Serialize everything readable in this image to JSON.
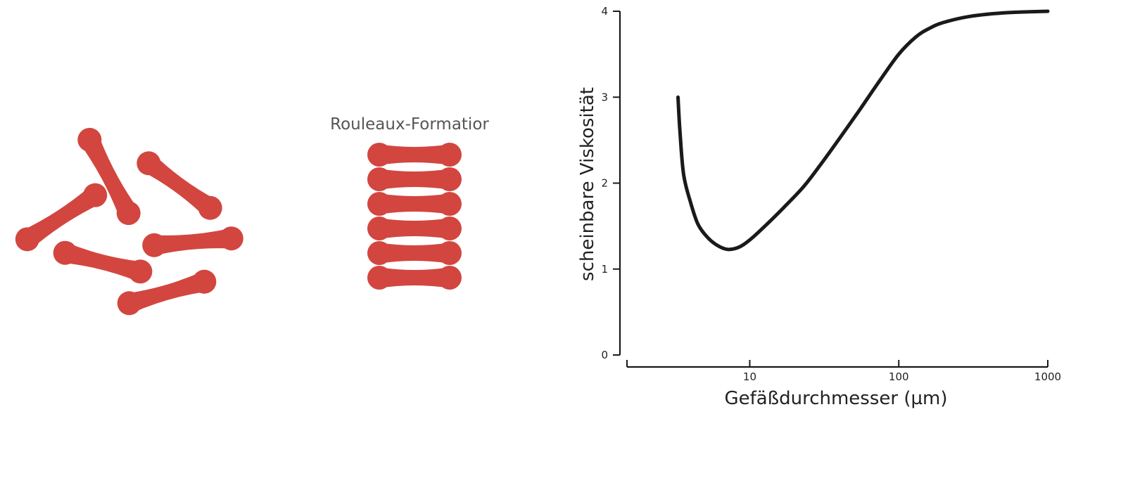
{
  "illustration": {
    "rouleaux_label": "Rouleaux-Formatior",
    "cell_color": "#d2463f"
  },
  "chart_data": {
    "type": "line",
    "xlabel": "Gefäßdurchmesser (µm)",
    "ylabel": "scheinbare Viskosität",
    "x_scale": "log",
    "xlim": [
      1.5,
      1000
    ],
    "ylim": [
      0,
      4
    ],
    "x_ticks": [
      10,
      100,
      1000
    ],
    "x_tick_labels": [
      "10",
      "100",
      "1000"
    ],
    "y_ticks": [
      0,
      1,
      2,
      3,
      4
    ],
    "y_tick_labels": [
      "0",
      "1",
      "2",
      "3",
      "4"
    ],
    "grid": false,
    "line_color": "#1a1a1a",
    "series": [
      {
        "x": [
          3.3,
          3.4,
          3.6,
          4.0,
          4.5,
          5.2,
          6.0,
          7.0,
          8.0,
          9.0,
          10.5,
          13,
          17,
          23,
          30,
          40,
          55,
          75,
          100,
          130,
          160,
          200,
          300,
          500,
          1000
        ],
        "y": [
          3.0,
          2.6,
          2.1,
          1.78,
          1.52,
          1.37,
          1.28,
          1.23,
          1.24,
          1.28,
          1.37,
          1.52,
          1.72,
          1.96,
          2.22,
          2.52,
          2.86,
          3.2,
          3.5,
          3.7,
          3.8,
          3.87,
          3.94,
          3.98,
          4.0
        ]
      }
    ]
  }
}
